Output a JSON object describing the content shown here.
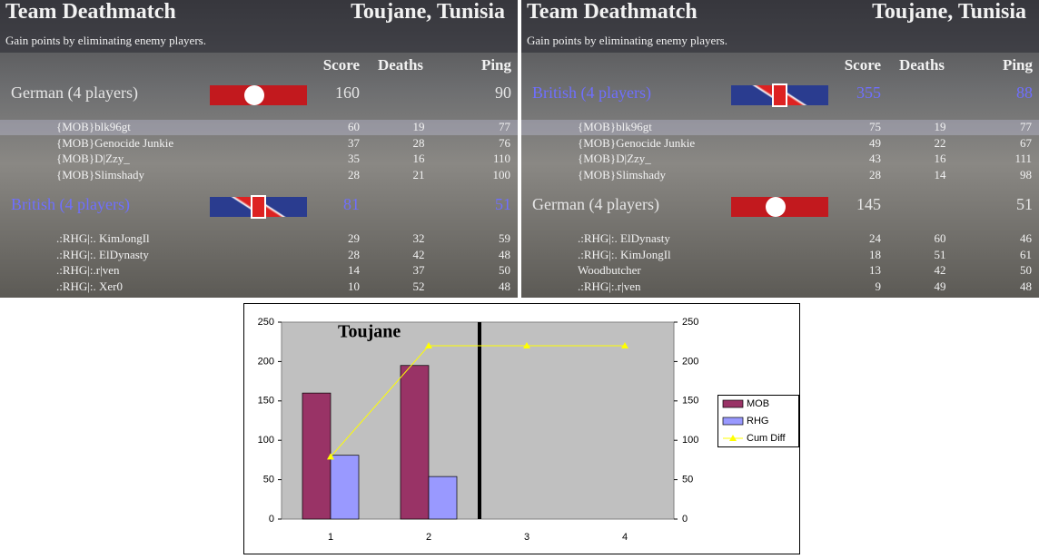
{
  "panels": [
    {
      "title": "Team Deathmatch",
      "map": "Toujane, Tunisia",
      "subtitle": "Gain points by eliminating enemy players.",
      "headers": [
        "Score",
        "Deaths",
        "Ping"
      ],
      "teams": [
        {
          "name": "German (4 players)",
          "score": 160,
          "ping": 90,
          "players": [
            {
              "name": "{MOB}blk96gt",
              "score": 60,
              "deaths": 19,
              "ping": 77
            },
            {
              "name": "{MOB}Genocide Junkie",
              "score": 37,
              "deaths": 28,
              "ping": 76
            },
            {
              "name": "{MOB}D|Zzy_",
              "score": 35,
              "deaths": 16,
              "ping": 110
            },
            {
              "name": "{MOB}Slimshady",
              "score": 28,
              "deaths": 21,
              "ping": 100
            }
          ]
        },
        {
          "name": "British (4 players)",
          "score": 81,
          "ping": 51,
          "players": [
            {
              "name": ".:RHG|:. KimJongIl",
              "score": 29,
              "deaths": 32,
              "ping": 59
            },
            {
              "name": ".:RHG|:. ElDynasty",
              "score": 28,
              "deaths": 42,
              "ping": 48
            },
            {
              "name": ".:RHG|:.r|ven",
              "score": 14,
              "deaths": 37,
              "ping": 50
            },
            {
              "name": ".:RHG|:. Xer0",
              "score": 10,
              "deaths": 52,
              "ping": 48
            }
          ]
        }
      ]
    },
    {
      "title": "Team Deathmatch",
      "map": "Toujane, Tunisia",
      "subtitle": "Gain points by eliminating enemy players.",
      "headers": [
        "Score",
        "Deaths",
        "Ping"
      ],
      "teams": [
        {
          "name": "British (4 players)",
          "score": 355,
          "ping": 88,
          "players": [
            {
              "name": "{MOB}blk96gt",
              "score": 75,
              "deaths": 19,
              "ping": 77
            },
            {
              "name": "{MOB}Genocide Junkie",
              "score": 49,
              "deaths": 22,
              "ping": 67
            },
            {
              "name": "{MOB}D|Zzy_",
              "score": 43,
              "deaths": 16,
              "ping": 111
            },
            {
              "name": "{MOB}Slimshady",
              "score": 28,
              "deaths": 14,
              "ping": 98
            }
          ]
        },
        {
          "name": "German (4 players)",
          "score": 145,
          "ping": 51,
          "players": [
            {
              "name": ".:RHG|:. ElDynasty",
              "score": 24,
              "deaths": 60,
              "ping": 46
            },
            {
              "name": ".:RHG|:. KimJongIl",
              "score": 18,
              "deaths": 51,
              "ping": 61
            },
            {
              "name": "Woodbutcher",
              "score": 13,
              "deaths": 42,
              "ping": 50
            },
            {
              "name": ".:RHG|:.r|ven",
              "score": 9,
              "deaths": 49,
              "ping": 48
            }
          ]
        }
      ]
    }
  ],
  "chart_data": {
    "type": "bar",
    "annotation": "Toujane",
    "categories": [
      "1",
      "2",
      "3",
      "4"
    ],
    "series": [
      {
        "name": "MOB",
        "color": "#993366",
        "values": [
          160,
          195,
          null,
          null
        ]
      },
      {
        "name": "RHG",
        "color": "#9999ff",
        "values": [
          81,
          54,
          null,
          null
        ]
      },
      {
        "name": "Cum Diff",
        "type": "line",
        "axis": "y2",
        "color": "#ffff00",
        "values": [
          79,
          220,
          220,
          220
        ]
      }
    ],
    "ylim": [
      0,
      250
    ],
    "yticks": [
      0,
      50,
      100,
      150,
      200,
      250
    ],
    "y2lim": [
      0,
      250
    ],
    "y2ticks": [
      0,
      50,
      100,
      150,
      200,
      250
    ]
  }
}
